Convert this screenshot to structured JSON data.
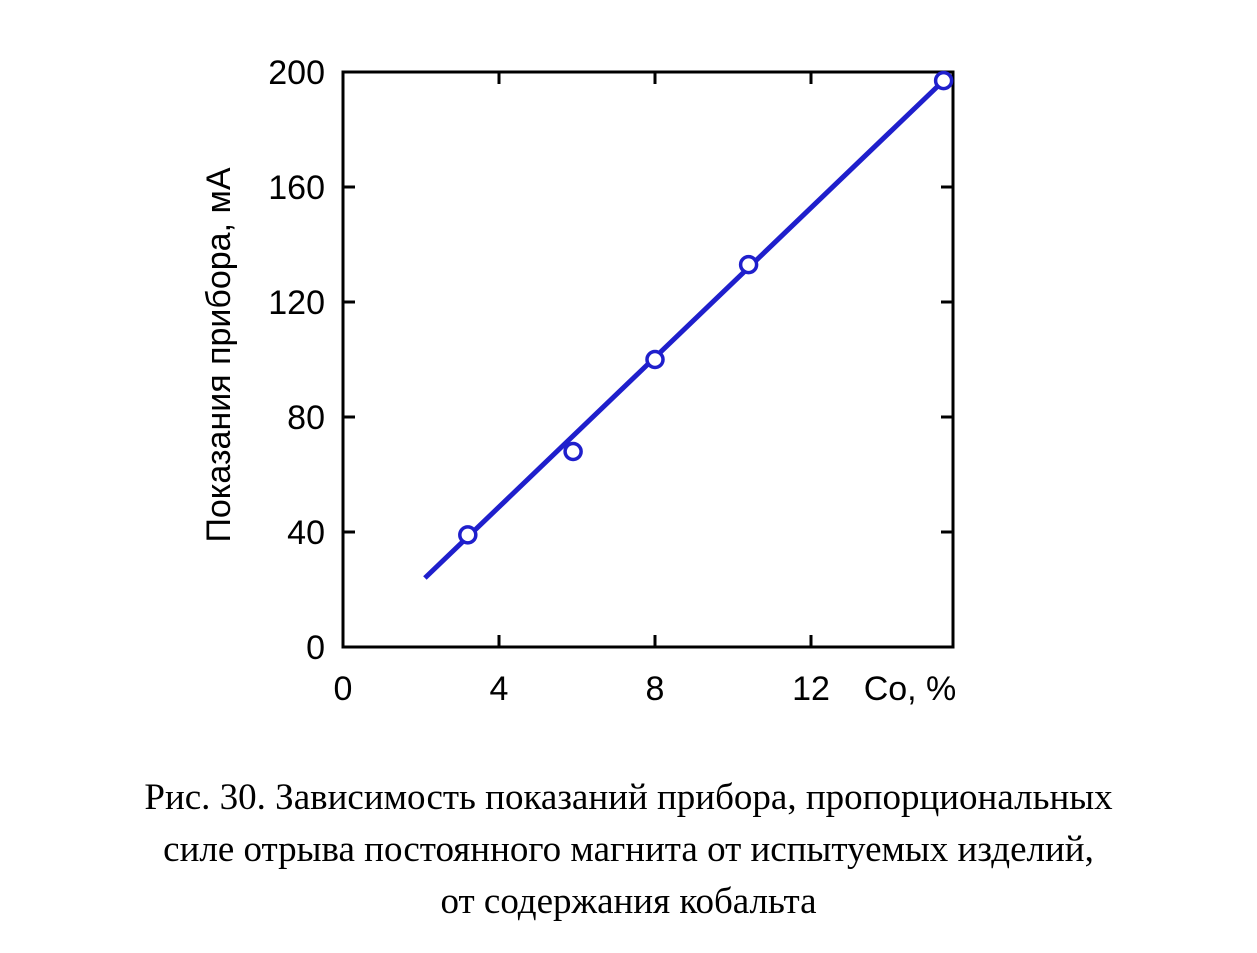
{
  "chart_data": {
    "type": "scatter",
    "xlabel": "Co, %",
    "ylabel": "Показания прибора, мА",
    "xlim": [
      0,
      15.5
    ],
    "ylim": [
      0,
      200
    ],
    "x_ticks": [
      "0",
      "4",
      "8",
      "12"
    ],
    "y_ticks": [
      "0",
      "40",
      "80",
      "120",
      "160",
      "200"
    ],
    "points": [
      {
        "x": 3.2,
        "y": 39
      },
      {
        "x": 5.9,
        "y": 68
      },
      {
        "x": 8.0,
        "y": 100
      },
      {
        "x": 10.4,
        "y": 133
      },
      {
        "x": 15.4,
        "y": 197
      }
    ],
    "fit_line": {
      "x": [
        2.1,
        15.4
      ],
      "y": [
        24,
        197
      ]
    },
    "line_color": "#1f1fcc",
    "marker_color": "#1f1fcc"
  },
  "caption": {
    "line1": "Рис. 30. Зависимость показаний прибора, пропорциональных",
    "line2": "силе отрыва постоянного магнита от испытуемых изделий,",
    "line3": "от содержания кобальта"
  }
}
